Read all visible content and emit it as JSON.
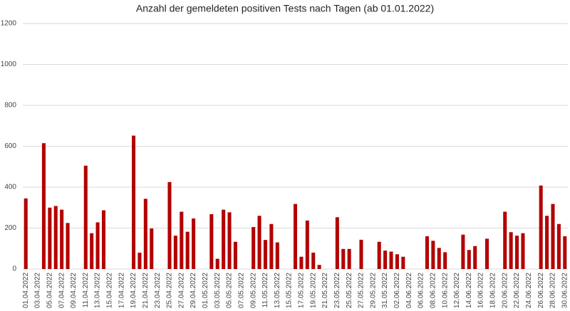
{
  "chart_data": {
    "type": "bar",
    "title": "Anzahl der gemeldeten positiven Tests nach Tagen (ab 01.01.2022)",
    "categories": [
      "01.04.2022",
      null,
      "03.04.2022",
      null,
      "05.04.2022",
      null,
      "07.04.2022",
      null,
      "09.04.2022",
      null,
      "11.04.2022",
      null,
      "13.04.2022",
      null,
      "15.04.2022",
      null,
      "17.04.2022",
      null,
      "19.04.2022",
      null,
      "21.04.2022",
      null,
      "23.04.2022",
      null,
      "25.04.2022",
      null,
      "27.04.2022",
      null,
      "29.04.2022",
      null,
      "01.05.2022",
      null,
      "03.05.2022",
      null,
      "05.05.2022",
      null,
      "07.05.2022",
      null,
      "09.05.2022",
      null,
      "11.05.2022",
      null,
      "13.05.2022",
      null,
      "15.05.2022",
      null,
      "17.05.2022",
      null,
      "19.05.2022",
      null,
      "21.05.2022",
      null,
      "23.05.2022",
      null,
      "25.05.2022",
      null,
      "27.05.2022",
      null,
      "29.05.2022",
      null,
      "31.05.2022",
      null,
      "02.06.2022",
      null,
      "04.06.2022",
      null,
      "06.06.2022",
      null,
      "08.06.2022",
      null,
      "10.06.2022",
      null,
      "12.06.2022",
      null,
      "14.06.2022",
      null,
      "16.06.2022",
      null,
      "18.06.2022",
      null,
      "20.06.2022",
      null,
      "22.06.2022",
      null,
      "24.06.2022",
      null,
      "26.06.2022",
      null,
      "28.06.2022",
      null,
      "30.06.2022"
    ],
    "values": [
      345,
      0,
      0,
      615,
      300,
      308,
      290,
      225,
      0,
      0,
      505,
      175,
      228,
      287,
      0,
      0,
      0,
      0,
      652,
      80,
      343,
      198,
      0,
      0,
      425,
      163,
      280,
      182,
      247,
      0,
      0,
      268,
      50,
      290,
      277,
      133,
      0,
      0,
      205,
      260,
      142,
      220,
      130,
      0,
      0,
      318,
      60,
      237,
      80,
      20,
      0,
      0,
      253,
      98,
      98,
      0,
      143,
      0,
      0,
      133,
      90,
      85,
      72,
      60,
      0,
      0,
      0,
      160,
      138,
      103,
      82,
      0,
      0,
      168,
      93,
      112,
      0,
      148,
      0,
      0,
      280,
      180,
      163,
      175,
      0,
      0,
      408,
      260,
      318,
      220,
      160
    ],
    "color": "#b30000",
    "ylim": [
      0,
      1200
    ],
    "yticks": [
      0,
      200,
      400,
      600,
      800,
      1000,
      1200
    ],
    "grid": true
  }
}
